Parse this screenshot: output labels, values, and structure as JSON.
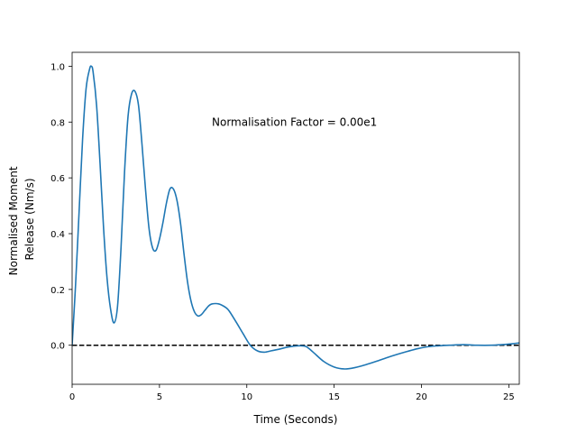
{
  "chart_data": {
    "type": "line",
    "xlabel": "Time (Seconds)",
    "ylabel_lines": [
      "Normalised Moment",
      "Release (Nm/s)"
    ],
    "xlim": [
      0,
      25.6
    ],
    "ylim": [
      -0.14,
      1.05
    ],
    "xticks": [
      0,
      5,
      10,
      15,
      20,
      25
    ],
    "yticks": [
      0.0,
      0.2,
      0.4,
      0.6,
      0.8,
      1.0
    ],
    "xtick_labels": [
      "0",
      "5",
      "10",
      "15",
      "20",
      "25"
    ],
    "ytick_labels": [
      "0.0",
      "0.2",
      "0.4",
      "0.6",
      "0.8",
      "1.0"
    ],
    "grid": false,
    "annotation": {
      "text": "Normalisation Factor = 0.00e1",
      "x": 8.0,
      "y": 0.8
    },
    "reference_line": {
      "y": 0.0,
      "style": "dashed",
      "color": "#000000"
    },
    "series": [
      {
        "color": "#1f77b4",
        "x": [
          0,
          0.2,
          0.4,
          0.6,
          0.8,
          1.0,
          1.1,
          1.2,
          1.4,
          1.6,
          1.8,
          2.0,
          2.2,
          2.4,
          2.6,
          2.8,
          3.0,
          3.2,
          3.4,
          3.6,
          3.8,
          4.0,
          4.2,
          4.4,
          4.6,
          4.8,
          5.0,
          5.2,
          5.4,
          5.6,
          5.8,
          6.0,
          6.2,
          6.4,
          6.6,
          6.8,
          7.0,
          7.2,
          7.4,
          7.6,
          7.8,
          8.0,
          8.4,
          8.8,
          9.0,
          9.4,
          9.8,
          10.2,
          10.6,
          11.0,
          11.4,
          11.8,
          12.4,
          13.0,
          13.4,
          13.8,
          14.4,
          15.0,
          15.6,
          16.2,
          16.8,
          17.4,
          18.0,
          18.6,
          19.2,
          19.8,
          20.4,
          21.0,
          21.6,
          22.4,
          23.2,
          24.0,
          24.6,
          25.0,
          25.6
        ],
        "y": [
          0.0,
          0.22,
          0.48,
          0.74,
          0.92,
          0.99,
          1.0,
          0.98,
          0.86,
          0.65,
          0.42,
          0.24,
          0.13,
          0.08,
          0.14,
          0.35,
          0.62,
          0.82,
          0.9,
          0.91,
          0.86,
          0.72,
          0.56,
          0.42,
          0.35,
          0.34,
          0.38,
          0.44,
          0.51,
          0.56,
          0.56,
          0.52,
          0.44,
          0.33,
          0.23,
          0.16,
          0.12,
          0.105,
          0.11,
          0.125,
          0.14,
          0.148,
          0.148,
          0.135,
          0.122,
          0.082,
          0.04,
          0.0,
          -0.02,
          -0.025,
          -0.02,
          -0.015,
          -0.006,
          -0.002,
          -0.005,
          -0.025,
          -0.058,
          -0.078,
          -0.085,
          -0.08,
          -0.07,
          -0.058,
          -0.045,
          -0.033,
          -0.022,
          -0.012,
          -0.005,
          -0.002,
          0.0,
          0.002,
          0.0,
          0.0,
          0.002,
          0.004,
          0.008
        ]
      }
    ]
  }
}
